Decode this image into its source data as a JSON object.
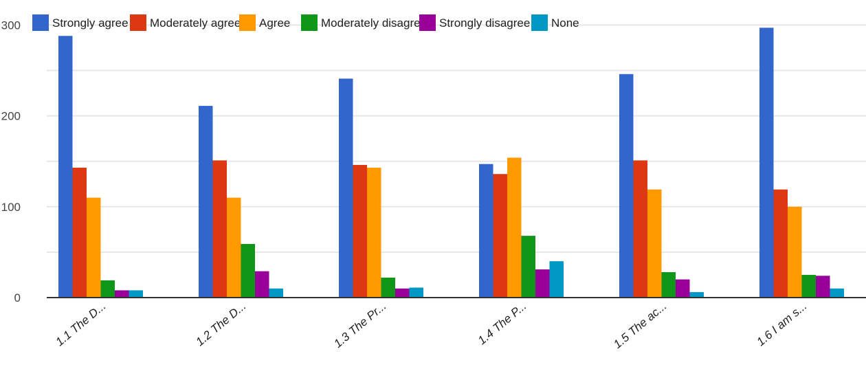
{
  "chart_data": {
    "type": "bar",
    "categories": [
      "1.1 The D...",
      "1.2 The D...",
      "1.3 The Pr...",
      "1.4 The P...",
      "1.5 The ac...",
      "1.6 I am s..."
    ],
    "series": [
      {
        "name": "Strongly agree",
        "color": "#3366cc",
        "values": [
          288,
          211,
          241,
          147,
          246,
          297
        ]
      },
      {
        "name": "Moderately agree",
        "color": "#dc3912",
        "values": [
          143,
          151,
          146,
          136,
          151,
          119
        ]
      },
      {
        "name": "Agree",
        "color": "#ff9900",
        "values": [
          110,
          110,
          143,
          154,
          119,
          100
        ]
      },
      {
        "name": "Moderately disagree",
        "color": "#109618",
        "values": [
          19,
          59,
          22,
          68,
          28,
          25
        ]
      },
      {
        "name": "Strongly disagree",
        "color": "#990099",
        "values": [
          8,
          29,
          10,
          31,
          20,
          24
        ]
      },
      {
        "name": "None",
        "color": "#0099c6",
        "values": [
          8,
          10,
          11,
          40,
          6,
          10
        ]
      }
    ],
    "yticks": [
      "0",
      "100",
      "200",
      "300"
    ],
    "ylim": [
      0,
      300
    ],
    "title": "",
    "xlabel": "",
    "ylabel": "",
    "grid": true,
    "legend_position": "top"
  }
}
